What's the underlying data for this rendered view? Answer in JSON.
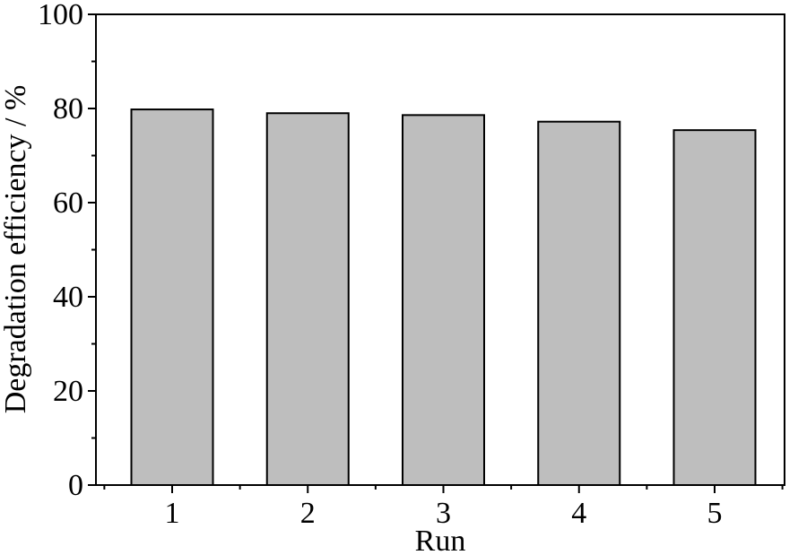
{
  "chart_data": {
    "type": "bar",
    "categories": [
      "1",
      "2",
      "3",
      "4",
      "5"
    ],
    "values": [
      79.8,
      79.0,
      78.6,
      77.2,
      75.4
    ],
    "xlabel": "Run",
    "ylabel": "Degradation efficiency / %",
    "ylim": [
      0,
      100
    ],
    "yticks": [
      0,
      20,
      40,
      60,
      80,
      100
    ],
    "bar_color": "#bebebe",
    "bar_edge_color": "#000000",
    "grid": false,
    "legend": "none"
  }
}
